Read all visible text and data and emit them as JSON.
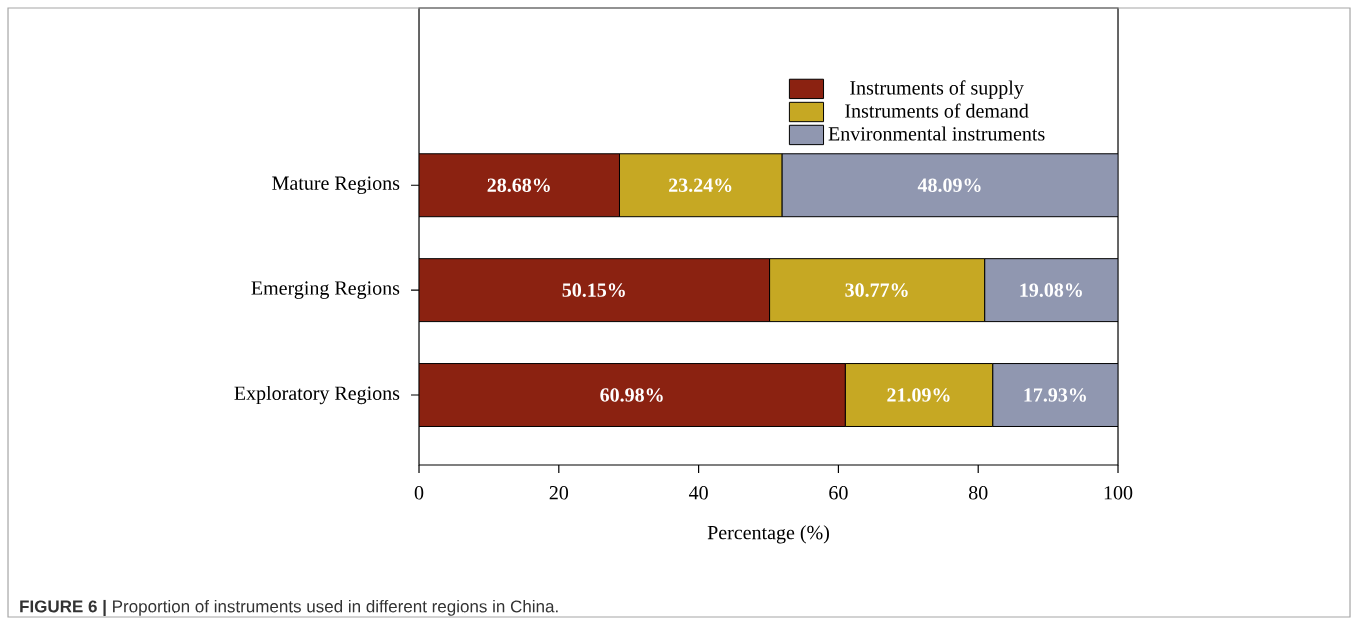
{
  "chart_data": {
    "type": "bar",
    "orientation": "horizontal",
    "stacked": true,
    "categories": [
      "Mature Regions",
      "Emerging Regions",
      "Exploratory Regions"
    ],
    "xlabel": "Percentage (%)",
    "xlim": [
      0,
      100
    ],
    "xticks": [
      0,
      20,
      40,
      60,
      80,
      100
    ],
    "legend": "top right",
    "series": [
      {
        "name": "Instruments of supply",
        "color": "#8b2211",
        "values": [
          28.68,
          50.15,
          60.98
        ],
        "value_labels": [
          "28.68%",
          "50.15%",
          "60.98%"
        ]
      },
      {
        "name": "Instruments of demand",
        "color": "#c6a823",
        "values": [
          23.24,
          30.77,
          21.09
        ],
        "value_labels": [
          "23.24%",
          "30.77%",
          "21.09%"
        ]
      },
      {
        "name": "Environmental instruments",
        "color": "#9097b0",
        "values": [
          48.09,
          19.08,
          17.93
        ],
        "value_labels": [
          "48.09%",
          "19.08%",
          "17.93%"
        ]
      }
    ],
    "annotations": [
      "**FIGURE 6 |** Proportion of instruments used in different regions in China."
    ]
  }
}
